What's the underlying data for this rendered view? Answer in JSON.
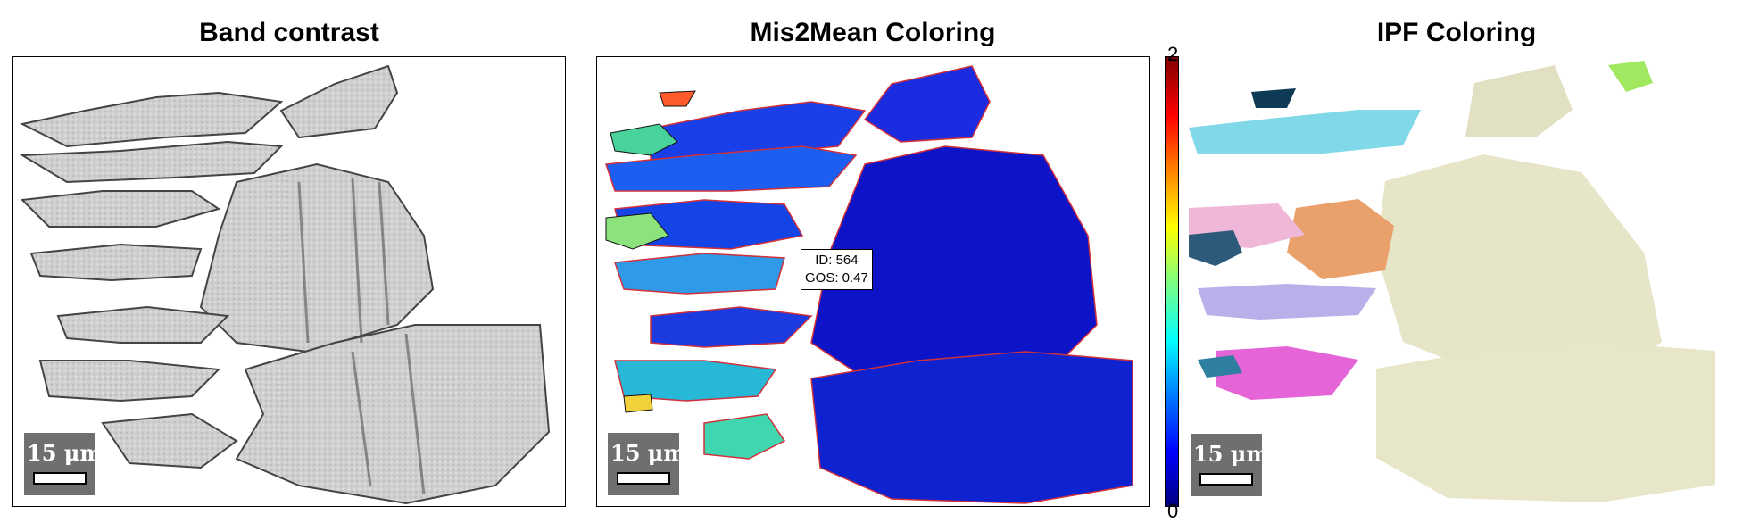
{
  "panels": {
    "band_contrast": {
      "title": "Band contrast",
      "scale_label": "15 μm"
    },
    "mis2mean": {
      "title": "Mis2Mean Coloring",
      "scale_label": "15 μm",
      "tooltip": {
        "id": "ID: 564",
        "gos": "GOS: 0.47"
      }
    },
    "ipf": {
      "title": "IPF Coloring",
      "scale_label": "15 μm"
    }
  },
  "colorbar": {
    "max_label": "2",
    "min_label": "0"
  },
  "colors": {
    "band_gray": "#c9c9c9",
    "mis_blue": "#1010d8",
    "ipf_cream": "#e7e6c8"
  }
}
